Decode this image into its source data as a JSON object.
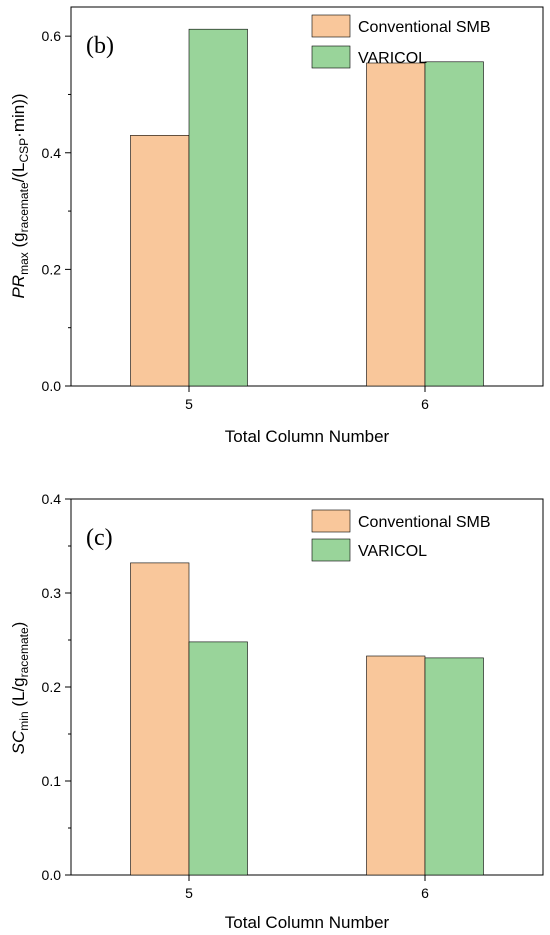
{
  "colors": {
    "conventional": "#f9c79b",
    "varicol": "#99d49a"
  },
  "chart_data": [
    {
      "type": "bar",
      "panel_label": "(b)",
      "categories": [
        "5",
        "6"
      ],
      "series": [
        {
          "name": "Conventional SMB",
          "values": [
            0.43,
            0.554
          ]
        },
        {
          "name": "VARICOL",
          "values": [
            0.612,
            0.556
          ]
        }
      ],
      "xlabel": "Total Column Number",
      "ylabel": {
        "main": "PR",
        "sub1": "max",
        "mid1": " (g",
        "sub2": "racemate",
        "mid2": "/(L",
        "sub3": "CSP",
        "end": "·min))"
      },
      "ylim": [
        0,
        0.65
      ],
      "yticks": [
        "0.0",
        "0.2",
        "0.4",
        "0.6"
      ],
      "ytick_values": [
        0,
        0.2,
        0.4,
        0.6
      ],
      "legend_placement": "top-right",
      "grid": false
    },
    {
      "type": "bar",
      "panel_label": "(c)",
      "categories": [
        "5",
        "6"
      ],
      "series": [
        {
          "name": "Conventional SMB",
          "values": [
            0.332,
            0.233
          ]
        },
        {
          "name": "VARICOL",
          "values": [
            0.248,
            0.231
          ]
        }
      ],
      "xlabel": "Total Column Number",
      "ylabel": {
        "main": "SC",
        "sub1": "min",
        "mid1": " (L/g",
        "sub2": "racemate",
        "end": ")"
      },
      "ylim": [
        0,
        0.4
      ],
      "yticks": [
        "0.0",
        "0.1",
        "0.2",
        "0.3",
        "0.4"
      ],
      "ytick_values": [
        0,
        0.1,
        0.2,
        0.3,
        0.4
      ],
      "legend_placement": "top-right",
      "grid": false
    }
  ]
}
